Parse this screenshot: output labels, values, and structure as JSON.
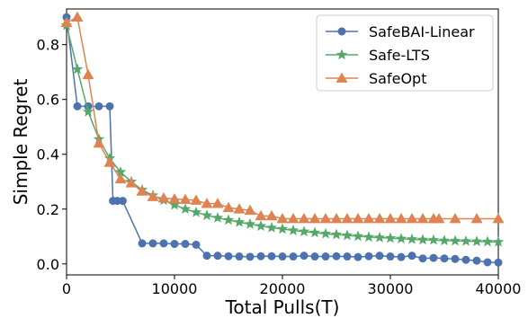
{
  "chart_data": {
    "type": "line",
    "title": "",
    "xlabel": "Total Pulls(T)",
    "ylabel": "Simple Regret",
    "xlim": [
      0,
      40000
    ],
    "ylim": [
      -0.04,
      0.93
    ],
    "x_ticks": [
      0,
      10000,
      20000,
      30000,
      40000
    ],
    "y_ticks": [
      0.0,
      0.2,
      0.4,
      0.6,
      0.8
    ],
    "x_tick_labels": [
      "0",
      "10000",
      "20000",
      "30000",
      "40000"
    ],
    "y_tick_labels": [
      "0.0",
      "0.2",
      "0.4",
      "0.6",
      "0.8"
    ],
    "grid": false,
    "legend_position": "top-right",
    "series": [
      {
        "name": "SafeBAI-Linear",
        "color": "#4c72b0",
        "marker": "circle",
        "x": [
          0,
          1000,
          2000,
          3000,
          4000,
          4300,
          4700,
          5200,
          7000,
          8000,
          9000,
          10000,
          11000,
          12000,
          13000,
          14000,
          15000,
          16000,
          17000,
          18000,
          19000,
          20000,
          21000,
          22000,
          23000,
          24000,
          25000,
          26000,
          27000,
          28000,
          29000,
          30000,
          31000,
          32000,
          33000,
          34000,
          35000,
          36000,
          37000,
          38000,
          39000,
          40000
        ],
        "y": [
          0.9,
          0.575,
          0.575,
          0.575,
          0.575,
          0.23,
          0.23,
          0.23,
          0.075,
          0.075,
          0.075,
          0.073,
          0.073,
          0.07,
          0.03,
          0.03,
          0.028,
          0.027,
          0.026,
          0.028,
          0.028,
          0.027,
          0.027,
          0.03,
          0.027,
          0.027,
          0.028,
          0.027,
          0.025,
          0.028,
          0.03,
          0.027,
          0.025,
          0.03,
          0.02,
          0.022,
          0.02,
          0.018,
          0.015,
          0.012,
          0.006,
          0.005
        ]
      },
      {
        "name": "Safe-LTS",
        "color": "#55a868",
        "marker": "star",
        "x": [
          0,
          1000,
          2000,
          3000,
          4000,
          5000,
          6000,
          7000,
          8000,
          9000,
          10000,
          11000,
          12000,
          13000,
          14000,
          15000,
          16000,
          17000,
          18000,
          19000,
          20000,
          21000,
          22000,
          23000,
          24000,
          25000,
          26000,
          27000,
          28000,
          29000,
          30000,
          31000,
          32000,
          33000,
          34000,
          35000,
          36000,
          37000,
          38000,
          39000,
          40000
        ],
        "y": [
          0.87,
          0.71,
          0.555,
          0.455,
          0.385,
          0.335,
          0.3,
          0.27,
          0.25,
          0.232,
          0.215,
          0.2,
          0.188,
          0.177,
          0.168,
          0.16,
          0.152,
          0.145,
          0.138,
          0.132,
          0.127,
          0.122,
          0.118,
          0.114,
          0.11,
          0.107,
          0.104,
          0.101,
          0.098,
          0.096,
          0.094,
          0.092,
          0.09,
          0.088,
          0.087,
          0.085,
          0.084,
          0.083,
          0.082,
          0.081,
          0.08
        ]
      },
      {
        "name": "SafeOpt",
        "color": "#dd8452",
        "marker": "triangle",
        "x": [
          0,
          1000,
          2000,
          3000,
          4000,
          5000,
          6000,
          7000,
          8000,
          9000,
          10000,
          11000,
          12000,
          13000,
          14000,
          15000,
          16000,
          17000,
          18000,
          19000,
          20000,
          21000,
          22000,
          23000,
          24000,
          25000,
          26000,
          27000,
          28000,
          29000,
          30000,
          31000,
          32000,
          33000,
          34000,
          34500,
          36000,
          38000,
          40000
        ],
        "y": [
          0.88,
          0.9,
          0.69,
          0.44,
          0.37,
          0.31,
          0.295,
          0.265,
          0.245,
          0.24,
          0.237,
          0.235,
          0.232,
          0.22,
          0.22,
          0.205,
          0.2,
          0.195,
          0.175,
          0.175,
          0.165,
          0.165,
          0.165,
          0.165,
          0.165,
          0.165,
          0.165,
          0.165,
          0.165,
          0.165,
          0.165,
          0.165,
          0.165,
          0.165,
          0.165,
          0.165,
          0.165,
          0.165,
          0.165
        ]
      }
    ]
  }
}
